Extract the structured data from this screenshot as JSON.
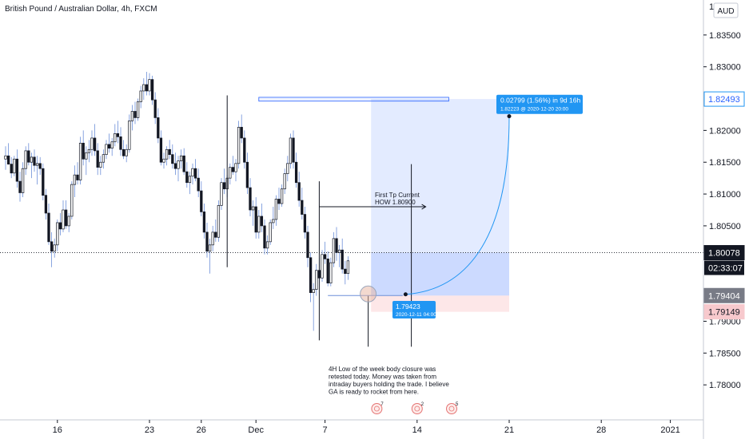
{
  "header": {
    "symbol": "British Pound / Australian Dollar, 4h, FXCM",
    "currency_badge": "AUD"
  },
  "chart_data": {
    "type": "candlestick",
    "ylim": [
      1.7745,
      1.8405
    ],
    "yticks": [
      {
        "v": 1.835,
        "label": "1.83500"
      },
      {
        "v": 1.83,
        "label": "1.83000"
      },
      {
        "v": 1.82,
        "label": "1.82000"
      },
      {
        "v": 1.815,
        "label": "1.81500"
      },
      {
        "v": 1.81,
        "label": "1.81000"
      },
      {
        "v": 1.805,
        "label": "1.80500"
      },
      {
        "v": 1.79,
        "label": "1.79000"
      },
      {
        "v": 1.785,
        "label": "1.78500"
      },
      {
        "v": 1.78,
        "label": "1.78000"
      }
    ],
    "xticks": [
      {
        "i": 18,
        "label": "16"
      },
      {
        "i": 50,
        "label": "23"
      },
      {
        "i": 68,
        "label": "26"
      },
      {
        "i": 87,
        "label": "Dec"
      },
      {
        "i": 111,
        "label": "7"
      },
      {
        "i": 143,
        "label": "14"
      },
      {
        "i": 175,
        "label": "21"
      },
      {
        "i": 207,
        "label": "28"
      },
      {
        "i": 231,
        "label": "2021"
      }
    ],
    "top_partial_tick": "1",
    "price_tags": [
      {
        "v": 1.82493,
        "label": "1.82493",
        "style": "blue-outline"
      },
      {
        "v": 1.80078,
        "label": "1.80078",
        "style": "dark"
      },
      {
        "v": 1.79404,
        "label": "1.79404",
        "style": "gray"
      },
      {
        "v": 1.79149,
        "label": "1.79149",
        "style": "red"
      }
    ],
    "countdown": "02:33:07",
    "current_price": 1.80078,
    "candles": [
      [
        1.8155,
        1.8175,
        1.8138,
        1.816
      ],
      [
        1.816,
        1.818,
        1.8146,
        1.8147
      ],
      [
        1.8147,
        1.8158,
        1.8125,
        1.8133
      ],
      [
        1.8133,
        1.816,
        1.8128,
        1.8155
      ],
      [
        1.8155,
        1.817,
        1.811,
        1.812
      ],
      [
        1.812,
        1.8135,
        1.8088,
        1.8102
      ],
      [
        1.8102,
        1.815,
        1.8095,
        1.814
      ],
      [
        1.814,
        1.8175,
        1.813,
        1.8168
      ],
      [
        1.8168,
        1.818,
        1.8145,
        1.815
      ],
      [
        1.815,
        1.8165,
        1.8125,
        1.8158
      ],
      [
        1.8158,
        1.817,
        1.8135,
        1.8145
      ],
      [
        1.8145,
        1.816,
        1.8115,
        1.8148
      ],
      [
        1.8148,
        1.8158,
        1.813,
        1.814
      ],
      [
        1.814,
        1.8148,
        1.809,
        1.8098
      ],
      [
        1.8098,
        1.8108,
        1.806,
        1.807
      ],
      [
        1.807,
        1.8085,
        1.802,
        1.8025
      ],
      [
        1.8025,
        1.804,
        1.7985,
        1.801
      ],
      [
        1.801,
        1.803,
        1.8,
        1.802
      ],
      [
        1.802,
        1.806,
        1.801,
        1.8055
      ],
      [
        1.8055,
        1.807,
        1.8035,
        1.8045
      ],
      [
        1.8045,
        1.809,
        1.804,
        1.8075
      ],
      [
        1.8075,
        1.809,
        1.8045,
        1.805
      ],
      [
        1.805,
        1.807,
        1.804,
        1.8065
      ],
      [
        1.8065,
        1.812,
        1.806,
        1.8115
      ],
      [
        1.8115,
        1.8145,
        1.8095,
        1.813
      ],
      [
        1.813,
        1.815,
        1.8115,
        1.8122
      ],
      [
        1.8122,
        1.819,
        1.8115,
        1.818
      ],
      [
        1.818,
        1.82,
        1.8145,
        1.8155
      ],
      [
        1.8155,
        1.8175,
        1.813,
        1.8165
      ],
      [
        1.8165,
        1.8185,
        1.815,
        1.817
      ],
      [
        1.817,
        1.82,
        1.816,
        1.8188
      ],
      [
        1.8188,
        1.821,
        1.816,
        1.8168
      ],
      [
        1.8168,
        1.818,
        1.813,
        1.8142
      ],
      [
        1.8142,
        1.816,
        1.813,
        1.815
      ],
      [
        1.815,
        1.817,
        1.814,
        1.8162
      ],
      [
        1.8162,
        1.8185,
        1.8155,
        1.8178
      ],
      [
        1.8178,
        1.8195,
        1.8165,
        1.8172
      ],
      [
        1.8172,
        1.8188,
        1.816,
        1.8182
      ],
      [
        1.8182,
        1.821,
        1.8175,
        1.8195
      ],
      [
        1.8195,
        1.8215,
        1.818,
        1.819
      ],
      [
        1.819,
        1.8205,
        1.816,
        1.817
      ],
      [
        1.817,
        1.8185,
        1.8155,
        1.816
      ],
      [
        1.816,
        1.8178,
        1.815,
        1.817
      ],
      [
        1.817,
        1.8225,
        1.8165,
        1.8215
      ],
      [
        1.8215,
        1.824,
        1.82,
        1.823
      ],
      [
        1.823,
        1.8245,
        1.821,
        1.822
      ],
      [
        1.822,
        1.825,
        1.8215,
        1.8245
      ],
      [
        1.8245,
        1.827,
        1.8235,
        1.8262
      ],
      [
        1.8262,
        1.8282,
        1.8248,
        1.8272
      ],
      [
        1.8272,
        1.8292,
        1.8255,
        1.8262
      ],
      [
        1.8262,
        1.829,
        1.8255,
        1.828
      ],
      [
        1.828,
        1.8286,
        1.824,
        1.8248
      ],
      [
        1.8248,
        1.826,
        1.821,
        1.822
      ],
      [
        1.822,
        1.8235,
        1.818,
        1.8188
      ],
      [
        1.8188,
        1.82,
        1.8145,
        1.815
      ],
      [
        1.815,
        1.8165,
        1.814,
        1.8155
      ],
      [
        1.8155,
        1.8175,
        1.8145,
        1.817
      ],
      [
        1.817,
        1.8185,
        1.8155,
        1.8162
      ],
      [
        1.8162,
        1.8178,
        1.814,
        1.8148
      ],
      [
        1.8148,
        1.8165,
        1.813,
        1.814
      ],
      [
        1.814,
        1.816,
        1.812,
        1.8152
      ],
      [
        1.8152,
        1.817,
        1.814,
        1.816
      ],
      [
        1.816,
        1.8172,
        1.813,
        1.8135
      ],
      [
        1.8135,
        1.815,
        1.811,
        1.8118
      ],
      [
        1.8118,
        1.8135,
        1.81,
        1.8128
      ],
      [
        1.8128,
        1.8148,
        1.8115,
        1.814
      ],
      [
        1.814,
        1.8155,
        1.812,
        1.8125
      ],
      [
        1.8125,
        1.814,
        1.8095,
        1.8105
      ],
      [
        1.8105,
        1.812,
        1.8065,
        1.8072
      ],
      [
        1.8072,
        1.8085,
        1.803,
        1.804
      ],
      [
        1.804,
        1.8055,
        1.8,
        1.801
      ],
      [
        1.801,
        1.803,
        1.7975,
        1.802
      ],
      [
        1.802,
        1.805,
        1.801,
        1.804
      ],
      [
        1.804,
        1.806,
        1.8025,
        1.8032
      ],
      [
        1.8032,
        1.809,
        1.8025,
        1.8082
      ],
      [
        1.8082,
        1.8125,
        1.8075,
        1.8118
      ],
      [
        1.8118,
        1.814,
        1.81,
        1.8108
      ],
      [
        1.8108,
        1.813,
        1.8095,
        1.8125
      ],
      [
        1.8125,
        1.8148,
        1.8115,
        1.8142
      ],
      [
        1.8142,
        1.816,
        1.813,
        1.8135
      ],
      [
        1.8135,
        1.8155,
        1.812,
        1.8148
      ],
      [
        1.8148,
        1.8215,
        1.814,
        1.8205
      ],
      [
        1.8205,
        1.8225,
        1.818,
        1.8188
      ],
      [
        1.8188,
        1.82,
        1.814,
        1.815
      ],
      [
        1.815,
        1.8165,
        1.81,
        1.811
      ],
      [
        1.811,
        1.8125,
        1.8065,
        1.8075
      ],
      [
        1.8075,
        1.809,
        1.805,
        1.808
      ],
      [
        1.808,
        1.8095,
        1.803,
        1.804
      ],
      [
        1.804,
        1.8075,
        1.803,
        1.8065
      ],
      [
        1.8065,
        1.8085,
        1.804,
        1.805
      ],
      [
        1.805,
        1.806,
        1.8005,
        1.8015
      ],
      [
        1.8015,
        1.8035,
        1.8005,
        1.8025
      ],
      [
        1.8025,
        1.806,
        1.802,
        1.8055
      ],
      [
        1.8055,
        1.808,
        1.8045,
        1.806
      ],
      [
        1.806,
        1.8098,
        1.805,
        1.8092
      ],
      [
        1.8092,
        1.811,
        1.8075,
        1.8085
      ],
      [
        1.8085,
        1.8115,
        1.808,
        1.8108
      ],
      [
        1.8108,
        1.814,
        1.81,
        1.8132
      ],
      [
        1.8132,
        1.816,
        1.812,
        1.8148
      ],
      [
        1.8148,
        1.8195,
        1.814,
        1.8188
      ],
      [
        1.8188,
        1.82,
        1.814,
        1.815
      ],
      [
        1.815,
        1.8165,
        1.811,
        1.8118
      ],
      [
        1.8118,
        1.8135,
        1.808,
        1.809
      ],
      [
        1.809,
        1.811,
        1.806,
        1.8068
      ],
      [
        1.8068,
        1.808,
        1.803,
        1.804
      ],
      [
        1.804,
        1.805,
        1.7985,
        1.8
      ],
      [
        1.8,
        1.8008,
        1.793,
        1.7945
      ],
      [
        1.7945,
        1.796,
        1.7885,
        1.795
      ],
      [
        1.795,
        1.799,
        1.794,
        1.798
      ],
      [
        1.798,
        1.8,
        1.796,
        1.7968
      ],
      [
        1.7968,
        1.8012,
        1.7962,
        1.8005
      ],
      [
        1.8005,
        1.8025,
        1.799,
        1.7998
      ],
      [
        1.7998,
        1.801,
        1.7955,
        1.796
      ],
      [
        1.796,
        1.8,
        1.7955,
        1.7992
      ],
      [
        1.7992,
        1.804,
        1.7985,
        1.803
      ],
      [
        1.803,
        1.8048,
        1.7995,
        1.8008
      ],
      [
        1.8008,
        1.802,
        1.7985,
        1.8012
      ],
      [
        1.8012,
        1.803,
        1.7975,
        1.7982
      ],
      [
        1.7982,
        1.7995,
        1.7958,
        1.7975
      ],
      [
        1.7975,
        1.8002,
        1.7965,
        1.7995
      ]
    ],
    "annotations": {
      "first_tp": {
        "line1": "First Tp Current",
        "line2": "HOW 1.80900"
      },
      "target_label": {
        "line1": "0.02799 (1.56%) in 9d 16h",
        "line2": "1.82223 @ 2020-12-20  20:00"
      },
      "entry_label": {
        "line1": "1.79423",
        "line2": "2020-12-11 04:00"
      },
      "note": [
        "4H  Low of the week body closure was",
        "retested today. Money was taken from",
        "intraday buyers holding the trade. I believe",
        "GA is ready to rocket from here."
      ],
      "event_badges": [
        {
          "i": 129,
          "count": "7"
        },
        {
          "i": 143,
          "count": "2"
        },
        {
          "i": 155,
          "count": "5"
        }
      ]
    }
  }
}
